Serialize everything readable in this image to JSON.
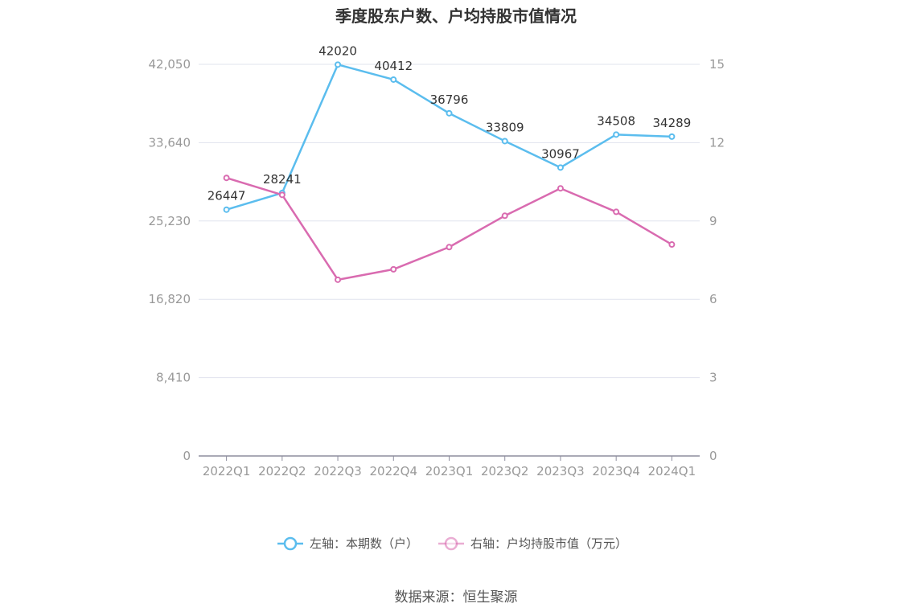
{
  "chart_data": {
    "type": "line",
    "title": "季度股东户数、户均持股市值情况",
    "categories": [
      "2022Q1",
      "2022Q2",
      "2022Q3",
      "2022Q4",
      "2023Q1",
      "2023Q2",
      "2023Q3",
      "2023Q4",
      "2024Q1"
    ],
    "series": [
      {
        "name": "左轴：本期数（户）",
        "axis": "left",
        "color": "#5bbdee",
        "values": [
          26447,
          28241,
          42020,
          40412,
          36796,
          33809,
          30967,
          34508,
          34289
        ],
        "labels": [
          "26447",
          "28241",
          "42020",
          "40412",
          "36796",
          "33809",
          "30967",
          "34508",
          "34289"
        ]
      },
      {
        "name": "右轴：户均持股市值（万元）",
        "axis": "right",
        "color": "#d96bb0",
        "values": [
          10.65,
          10.0,
          6.75,
          7.15,
          8.0,
          9.2,
          10.25,
          9.35,
          8.1
        ]
      }
    ],
    "y_left": {
      "min": 0,
      "max": 42050,
      "ticks": [
        0,
        8410,
        16820,
        25230,
        33640,
        42050
      ],
      "tick_labels": [
        "0",
        "8,410",
        "16,820",
        "25,230",
        "33,640",
        "42,050"
      ]
    },
    "y_right": {
      "min": 0,
      "max": 15,
      "ticks": [
        0,
        3,
        6,
        9,
        12,
        15
      ],
      "tick_labels": [
        "0",
        "3",
        "6",
        "9",
        "12",
        "15"
      ]
    },
    "grid": true,
    "legend": "bottom-center"
  },
  "source": "数据来源：恒生聚源"
}
